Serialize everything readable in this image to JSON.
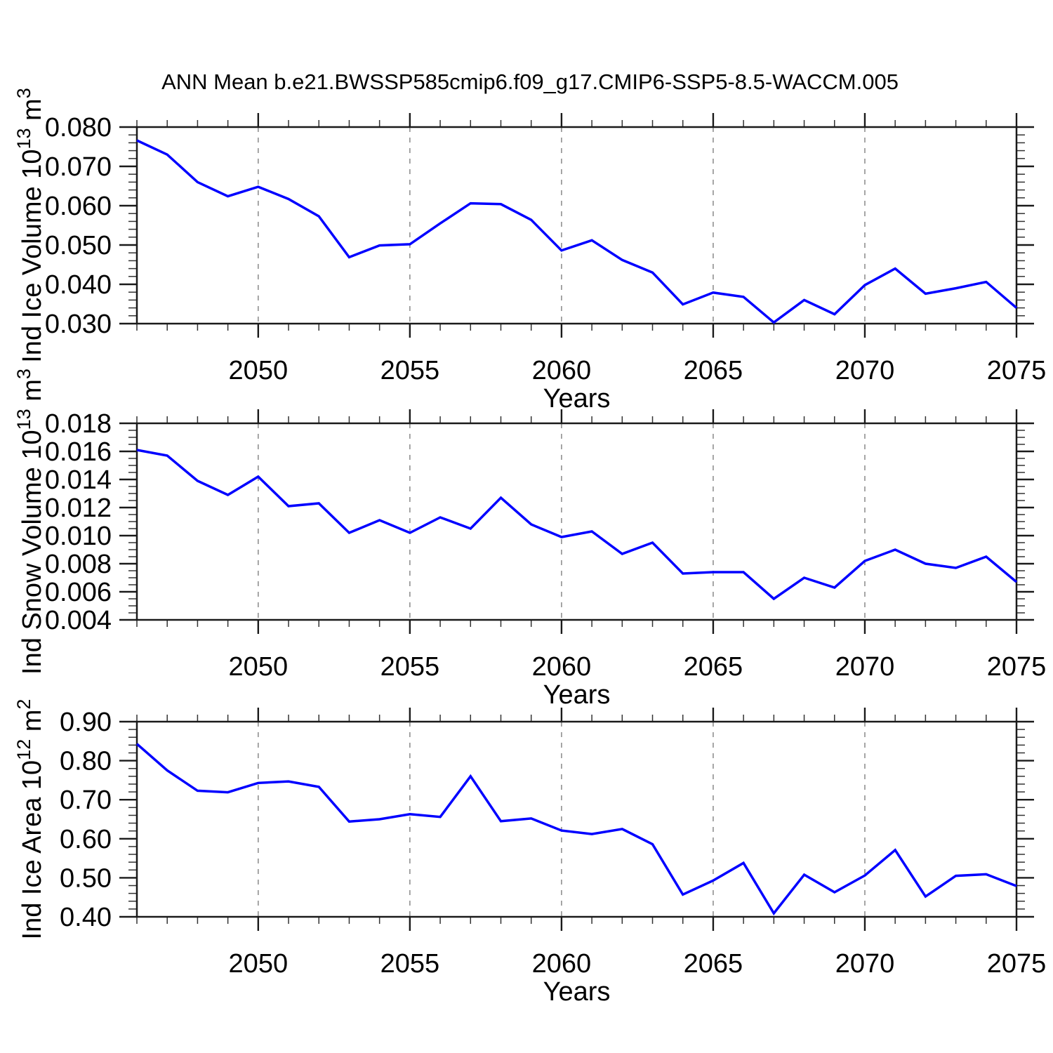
{
  "title": "ANN Mean b.e21.BWSSP585cmip6.f09_g17.CMIP6-SSP5-8.5-WACCM.005",
  "xlabel": "Years",
  "colors": {
    "line": "#0000ff",
    "axis": "#1a1a1a",
    "minor_tick": "#333333",
    "grid": "#909090",
    "text": "#000000"
  },
  "x_axis": {
    "min": 2046,
    "max": 2075,
    "major_ticks": [
      {
        "v": 2050,
        "label": "2050"
      },
      {
        "v": 2055,
        "label": "2055"
      },
      {
        "v": 2060,
        "label": "2060"
      },
      {
        "v": 2065,
        "label": "2065"
      },
      {
        "v": 2070,
        "label": "2070"
      },
      {
        "v": 2075,
        "label": "2075"
      }
    ],
    "minor_step": 1,
    "gridlines": [
      2050,
      2055,
      2060,
      2065,
      2070
    ]
  },
  "chart_data": [
    {
      "type": "line",
      "name": "ice-volume",
      "ylabel": "Ind Ice Volume 10^13 m^3",
      "ylabel_parts": [
        {
          "t": "Ind Ice Volume 10"
        },
        {
          "sup": "13"
        },
        {
          "t": " m"
        },
        {
          "sup": "3"
        }
      ],
      "xlabel": "Years",
      "ylim": [
        0.03,
        0.08
      ],
      "yticks": [
        {
          "v": 0.08,
          "label": "0.080"
        },
        {
          "v": 0.07,
          "label": "0.070"
        },
        {
          "v": 0.06,
          "label": "0.060"
        },
        {
          "v": 0.05,
          "label": "0.050"
        },
        {
          "v": 0.04,
          "label": "0.040"
        },
        {
          "v": 0.03,
          "label": "0.030"
        }
      ],
      "y_minor_step": 0.002,
      "grid": "vertical-dashed",
      "legend": "none",
      "x": [
        2046,
        2047,
        2048,
        2049,
        2050,
        2051,
        2052,
        2053,
        2054,
        2055,
        2056,
        2057,
        2058,
        2059,
        2060,
        2061,
        2062,
        2063,
        2064,
        2065,
        2066,
        2067,
        2068,
        2069,
        2070,
        2071,
        2072,
        2073,
        2074,
        2075
      ],
      "values": [
        0.0766,
        0.073,
        0.066,
        0.0624,
        0.0648,
        0.0617,
        0.0573,
        0.0469,
        0.0499,
        0.0502,
        0.0555,
        0.0606,
        0.0604,
        0.0564,
        0.0486,
        0.0512,
        0.0462,
        0.043,
        0.0349,
        0.0379,
        0.0368,
        0.0303,
        0.036,
        0.0324,
        0.0398,
        0.044,
        0.0376,
        0.039,
        0.0406,
        0.034
      ]
    },
    {
      "type": "line",
      "name": "snow-volume",
      "ylabel": "Ind Snow Volume 10^13 m^3",
      "ylabel_parts": [
        {
          "t": "Ind Snow Volume 10"
        },
        {
          "sup": "13"
        },
        {
          "t": " m"
        },
        {
          "sup": "3"
        }
      ],
      "xlabel": "Years",
      "ylim": [
        0.004,
        0.018
      ],
      "yticks": [
        {
          "v": 0.018,
          "label": "0.018"
        },
        {
          "v": 0.016,
          "label": "0.016"
        },
        {
          "v": 0.014,
          "label": "0.014"
        },
        {
          "v": 0.012,
          "label": "0.012"
        },
        {
          "v": 0.01,
          "label": "0.010"
        },
        {
          "v": 0.008,
          "label": "0.008"
        },
        {
          "v": 0.006,
          "label": "0.006"
        },
        {
          "v": 0.004,
          "label": "0.004"
        }
      ],
      "y_minor_step": 0.0005,
      "grid": "vertical-dashed",
      "legend": "none",
      "x": [
        2046,
        2047,
        2048,
        2049,
        2050,
        2051,
        2052,
        2053,
        2054,
        2055,
        2056,
        2057,
        2058,
        2059,
        2060,
        2061,
        2062,
        2063,
        2064,
        2065,
        2066,
        2067,
        2068,
        2069,
        2070,
        2071,
        2072,
        2073,
        2074,
        2075
      ],
      "values": [
        0.0161,
        0.0157,
        0.0139,
        0.0129,
        0.0142,
        0.0121,
        0.0123,
        0.0102,
        0.0111,
        0.0102,
        0.0113,
        0.0105,
        0.0127,
        0.0108,
        0.0099,
        0.0103,
        0.0087,
        0.0095,
        0.0073,
        0.0074,
        0.0074,
        0.0055,
        0.007,
        0.0063,
        0.0082,
        0.009,
        0.008,
        0.0077,
        0.0085,
        0.0067
      ]
    },
    {
      "type": "line",
      "name": "ice-area",
      "ylabel": "Ind Ice Area 10^12 m^2",
      "ylabel_parts": [
        {
          "t": "Ind Ice Area 10"
        },
        {
          "sup": "12"
        },
        {
          "t": " m"
        },
        {
          "sup": "2"
        }
      ],
      "xlabel": "Years",
      "ylim": [
        0.4,
        0.9
      ],
      "yticks": [
        {
          "v": 0.9,
          "label": "0.90"
        },
        {
          "v": 0.8,
          "label": "0.80"
        },
        {
          "v": 0.7,
          "label": "0.70"
        },
        {
          "v": 0.6,
          "label": "0.60"
        },
        {
          "v": 0.5,
          "label": "0.50"
        },
        {
          "v": 0.4,
          "label": "0.40"
        }
      ],
      "y_minor_step": 0.02,
      "grid": "vertical-dashed",
      "legend": "none",
      "x": [
        2046,
        2047,
        2048,
        2049,
        2050,
        2051,
        2052,
        2053,
        2054,
        2055,
        2056,
        2057,
        2058,
        2059,
        2060,
        2061,
        2062,
        2063,
        2064,
        2065,
        2066,
        2067,
        2068,
        2069,
        2070,
        2071,
        2072,
        2073,
        2074,
        2075
      ],
      "values": [
        0.843,
        0.775,
        0.723,
        0.719,
        0.743,
        0.747,
        0.733,
        0.644,
        0.65,
        0.663,
        0.656,
        0.76,
        0.645,
        0.652,
        0.621,
        0.612,
        0.625,
        0.586,
        0.457,
        0.493,
        0.538,
        0.409,
        0.508,
        0.463,
        0.506,
        0.571,
        0.452,
        0.505,
        0.509,
        0.479
      ]
    }
  ]
}
